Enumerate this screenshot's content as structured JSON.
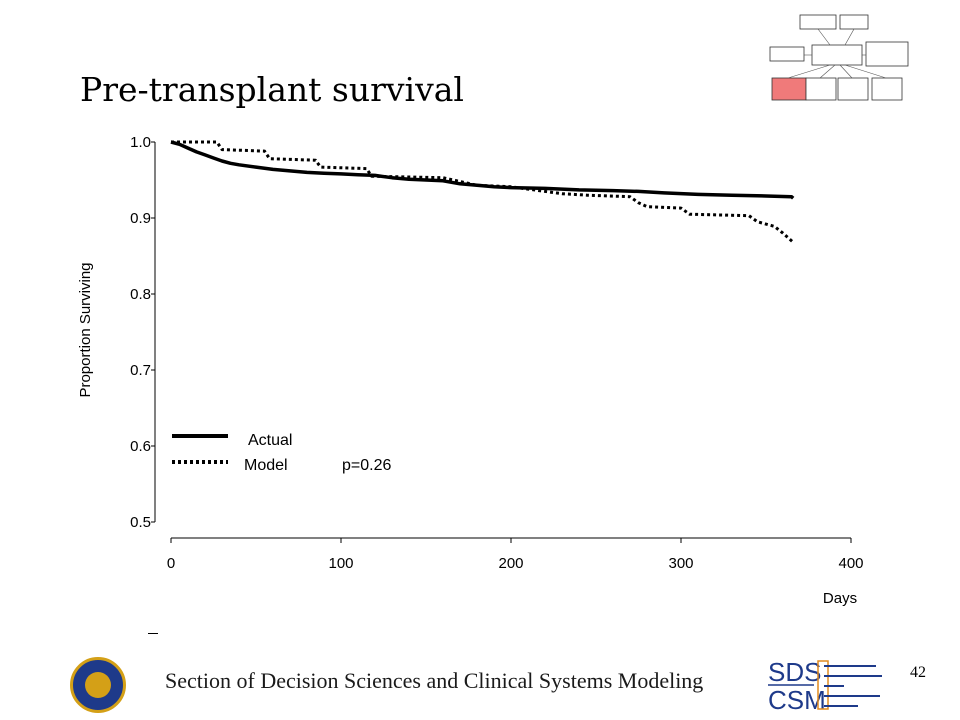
{
  "slide": {
    "title": "Pre-transplant survival",
    "footer": "Section of Decision Sciences and Clinical Systems Modeling",
    "page_number": "42"
  },
  "logo": {
    "top": "SDS",
    "bottom": "CSM"
  },
  "chart_data": {
    "type": "line",
    "title": "",
    "xlabel": "Days",
    "ylabel": "Proportion Surviving",
    "xlim": [
      0,
      400
    ],
    "ylim": [
      0.5,
      1.0
    ],
    "x_ticks": [
      0,
      100,
      200,
      300,
      400
    ],
    "y_ticks": [
      0.5,
      0.6,
      0.7,
      0.8,
      0.9,
      1.0
    ],
    "y_tick_labels": [
      "0.5",
      "0.6",
      "0.7",
      "0.8",
      "0.9",
      "1.0"
    ],
    "annotation": "p=0.26",
    "legend_position": "bottom-left",
    "series": [
      {
        "name": "Actual",
        "style": "solid",
        "color": "#000000",
        "points": [
          [
            0,
            1.0
          ],
          [
            5,
            0.997
          ],
          [
            10,
            0.992
          ],
          [
            15,
            0.987
          ],
          [
            20,
            0.983
          ],
          [
            25,
            0.979
          ],
          [
            30,
            0.975
          ],
          [
            35,
            0.972
          ],
          [
            40,
            0.97
          ],
          [
            50,
            0.967
          ],
          [
            60,
            0.964
          ],
          [
            70,
            0.962
          ],
          [
            80,
            0.96
          ],
          [
            90,
            0.959
          ],
          [
            100,
            0.958
          ],
          [
            110,
            0.957
          ],
          [
            120,
            0.956
          ],
          [
            130,
            0.953
          ],
          [
            140,
            0.951
          ],
          [
            160,
            0.949
          ],
          [
            170,
            0.945
          ],
          [
            180,
            0.943
          ],
          [
            190,
            0.941
          ],
          [
            200,
            0.94
          ],
          [
            220,
            0.939
          ],
          [
            240,
            0.937
          ],
          [
            260,
            0.936
          ],
          [
            275,
            0.935
          ],
          [
            290,
            0.933
          ],
          [
            310,
            0.931
          ],
          [
            330,
            0.93
          ],
          [
            350,
            0.929
          ],
          [
            365,
            0.928
          ],
          [
            366,
            0.926
          ]
        ]
      },
      {
        "name": "Model",
        "style": "dotted",
        "color": "#000000",
        "points": [
          [
            0,
            1.0
          ],
          [
            27,
            1.0
          ],
          [
            30,
            0.99
          ],
          [
            55,
            0.988
          ],
          [
            58,
            0.978
          ],
          [
            85,
            0.976
          ],
          [
            88,
            0.967
          ],
          [
            115,
            0.965
          ],
          [
            118,
            0.955
          ],
          [
            160,
            0.953
          ],
          [
            170,
            0.948
          ],
          [
            180,
            0.943
          ],
          [
            200,
            0.941
          ],
          [
            210,
            0.938
          ],
          [
            220,
            0.935
          ],
          [
            230,
            0.932
          ],
          [
            245,
            0.93
          ],
          [
            270,
            0.928
          ],
          [
            275,
            0.92
          ],
          [
            280,
            0.915
          ],
          [
            300,
            0.913
          ],
          [
            305,
            0.905
          ],
          [
            340,
            0.903
          ],
          [
            345,
            0.895
          ],
          [
            355,
            0.889
          ],
          [
            360,
            0.88
          ],
          [
            366,
            0.868
          ]
        ]
      }
    ]
  }
}
